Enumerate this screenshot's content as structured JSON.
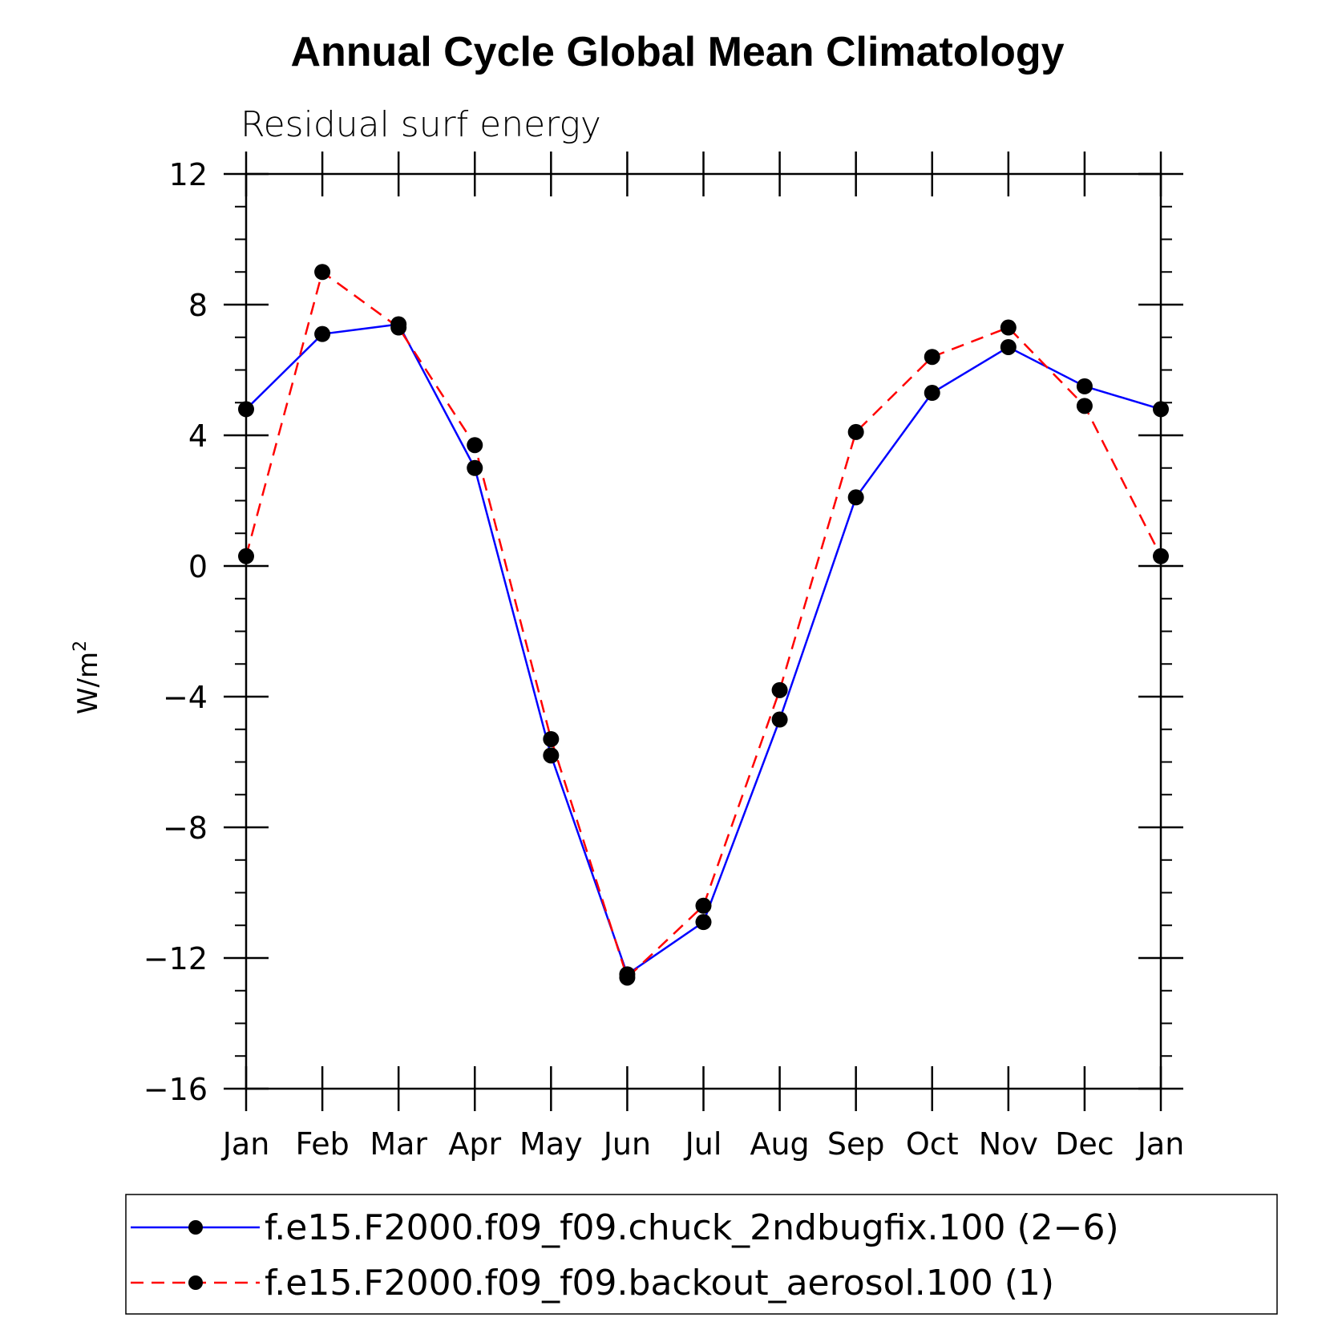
{
  "chart_data": {
    "type": "line",
    "title": "Annual Cycle Global Mean Climatology",
    "subtitle": "Residual surf energy",
    "ylabel": "W/m",
    "ylabel_superscript": "2",
    "xlabel": "",
    "categories": [
      "Jan",
      "Feb",
      "Mar",
      "Apr",
      "May",
      "Jun",
      "Jul",
      "Aug",
      "Sep",
      "Oct",
      "Nov",
      "Dec",
      "Jan"
    ],
    "ylim": [
      -16,
      12
    ],
    "yticks": [
      12,
      8,
      4,
      0,
      -4,
      -8,
      -12,
      -16
    ],
    "ytick_labels": [
      "12",
      "8",
      "4",
      "0",
      "−4",
      "−8",
      "−12",
      "−16"
    ],
    "series": [
      {
        "name": "f.e15.F2000.f09_f09.chuck_2ndbugfix.100 (2−6)",
        "color": "#0000ff",
        "style": "solid",
        "values": [
          4.8,
          7.1,
          7.4,
          3.0,
          -5.8,
          -12.5,
          -10.9,
          -4.7,
          2.1,
          5.3,
          6.7,
          5.5,
          4.8
        ]
      },
      {
        "name": "f.e15.F2000.f09_f09.backout_aerosol.100 (1)",
        "color": "#ff0000",
        "style": "dashed",
        "values": [
          0.3,
          9.0,
          7.3,
          3.7,
          -5.3,
          -12.6,
          -10.4,
          -3.8,
          4.1,
          6.4,
          7.3,
          4.9,
          0.3
        ]
      }
    ],
    "legend_position": "bottom"
  }
}
